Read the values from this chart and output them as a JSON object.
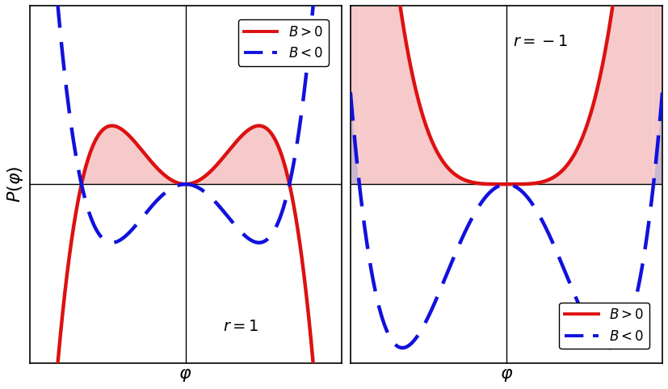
{
  "xlim": [
    -1.8,
    1.8
  ],
  "ylim": [
    -1.1,
    1.1
  ],
  "red_color": "#dd1111",
  "blue_color": "#1111dd",
  "pink_fill": "#f0a0a0",
  "purple_fill": "#b090b8",
  "lw_red": 3.2,
  "lw_blue": 3.2,
  "ylabel": "$P(\\varphi)$",
  "xlabel": "$\\varphi$",
  "label_r1": "$r = 1$",
  "label_rm1": "$r = -1$",
  "alpha_fill": 0.55,
  "phi0": 1.2
}
